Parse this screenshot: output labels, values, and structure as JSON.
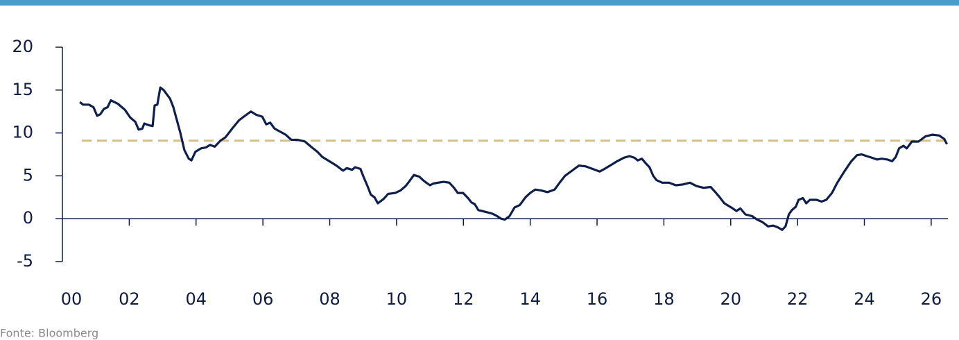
{
  "chart_data": {
    "type": "line",
    "source": "Fonte: Bloomberg",
    "color": "#0f1f4b",
    "x": [
      2000.52,
      2000.62,
      2000.79,
      2000.93,
      2001.04,
      2001.14,
      2001.24,
      2001.35,
      2001.45,
      2001.66,
      2001.87,
      2002.03,
      2002.18,
      2002.28,
      2002.39,
      2002.45,
      2002.59,
      2002.7,
      2002.76,
      2002.84,
      2002.93,
      2003.03,
      2003.22,
      2003.32,
      2003.53,
      2003.65,
      2003.78,
      2003.86,
      2003.98,
      2004.15,
      2004.29,
      2004.42,
      2004.56,
      2004.73,
      2004.88,
      2005.08,
      2005.29,
      2005.5,
      2005.64,
      2005.81,
      2005.98,
      2006.1,
      2006.22,
      2006.35,
      2006.54,
      2006.68,
      2006.85,
      2007.05,
      2007.26,
      2007.47,
      2007.63,
      2007.78,
      2007.99,
      2008.2,
      2008.4,
      2008.51,
      2008.67,
      2008.76,
      2008.92,
      2009.02,
      2009.13,
      2009.23,
      2009.34,
      2009.44,
      2009.61,
      2009.75,
      2009.96,
      2010.12,
      2010.27,
      2010.37,
      2010.52,
      2010.68,
      2010.79,
      2010.89,
      2011.0,
      2011.1,
      2011.24,
      2011.41,
      2011.58,
      2011.72,
      2011.83,
      2011.99,
      2012.14,
      2012.24,
      2012.34,
      2012.45,
      2012.66,
      2012.86,
      2012.97,
      2013.13,
      2013.24,
      2013.38,
      2013.53,
      2013.69,
      2013.86,
      2014.0,
      2014.15,
      2014.32,
      2014.52,
      2014.73,
      2014.9,
      2015.04,
      2015.25,
      2015.46,
      2015.66,
      2015.87,
      2016.08,
      2016.22,
      2016.39,
      2016.6,
      2016.8,
      2016.97,
      2017.12,
      2017.22,
      2017.34,
      2017.47,
      2017.57,
      2017.68,
      2017.78,
      2017.95,
      2018.15,
      2018.36,
      2018.57,
      2018.78,
      2018.98,
      2019.19,
      2019.4,
      2019.54,
      2019.67,
      2019.81,
      2020.02,
      2020.17,
      2020.29,
      2020.44,
      2020.64,
      2020.79,
      2020.95,
      2021.12,
      2021.27,
      2021.41,
      2021.54,
      2021.64,
      2021.74,
      2021.83,
      2021.95,
      2022.03,
      2022.16,
      2022.26,
      2022.37,
      2022.57,
      2022.72,
      2022.86,
      2023.03,
      2023.19,
      2023.4,
      2023.61,
      2023.78,
      2023.92,
      2024.07,
      2024.23,
      2024.38,
      2024.52,
      2024.69,
      2024.83,
      2024.94,
      2025.04,
      2025.17,
      2025.27,
      2025.42,
      2025.62,
      2025.83,
      2026.04,
      2026.24,
      2026.39,
      2026.47
    ],
    "values": [
      13.6,
      13.3,
      13.3,
      13.0,
      12.0,
      12.2,
      12.8,
      13.0,
      13.8,
      13.4,
      12.7,
      11.8,
      11.3,
      10.4,
      10.5,
      11.1,
      10.9,
      10.8,
      13.2,
      13.3,
      15.3,
      15.0,
      14.0,
      13.0,
      10.0,
      8.0,
      7.0,
      6.8,
      7.8,
      8.2,
      8.3,
      8.6,
      8.4,
      9.1,
      9.5,
      10.5,
      11.5,
      12.1,
      12.5,
      12.1,
      11.9,
      11.0,
      11.2,
      10.5,
      10.1,
      9.8,
      9.2,
      9.2,
      9.0,
      8.3,
      7.8,
      7.2,
      6.7,
      6.2,
      5.6,
      5.9,
      5.7,
      6.0,
      5.8,
      4.8,
      3.8,
      2.8,
      2.5,
      1.8,
      2.3,
      2.9,
      3.0,
      3.3,
      3.8,
      4.3,
      5.1,
      4.9,
      4.5,
      4.2,
      3.9,
      4.1,
      4.2,
      4.3,
      4.2,
      3.6,
      3.0,
      3.0,
      2.4,
      1.9,
      1.7,
      1.0,
      0.8,
      0.6,
      0.4,
      0.0,
      -0.1,
      0.3,
      1.3,
      1.6,
      2.5,
      3.0,
      3.4,
      3.3,
      3.1,
      3.4,
      4.3,
      5.0,
      5.6,
      6.2,
      6.1,
      5.8,
      5.5,
      5.8,
      6.2,
      6.7,
      7.1,
      7.3,
      7.1,
      6.8,
      7.0,
      6.4,
      6.0,
      5.0,
      4.5,
      4.2,
      4.2,
      3.9,
      4.0,
      4.2,
      3.8,
      3.6,
      3.7,
      3.1,
      2.5,
      1.8,
      1.3,
      0.9,
      1.2,
      0.5,
      0.3,
      -0.1,
      -0.4,
      -0.9,
      -0.8,
      -1.0,
      -1.3,
      -0.9,
      0.5,
      1.0,
      1.4,
      2.2,
      2.4,
      1.8,
      2.2,
      2.2,
      2.0,
      2.2,
      3.0,
      4.2,
      5.5,
      6.7,
      7.4,
      7.5,
      7.3,
      7.1,
      6.9,
      7.0,
      6.9,
      6.7,
      7.2,
      8.2,
      8.5,
      8.2,
      9.0,
      9.0,
      9.6,
      9.8,
      9.7,
      9.3,
      8.7
    ],
    "reference_line": {
      "value": 9.1,
      "color": "#d4bf8a"
    },
    "xlim": [
      2000,
      2026.5
    ],
    "xticks": [
      {
        "value": 2000,
        "label": "00"
      },
      {
        "value": 2002,
        "label": "02"
      },
      {
        "value": 2004,
        "label": "04"
      },
      {
        "value": 2006,
        "label": "06"
      },
      {
        "value": 2008,
        "label": "08"
      },
      {
        "value": 2010,
        "label": "10"
      },
      {
        "value": 2012,
        "label": "12"
      },
      {
        "value": 2014,
        "label": "14"
      },
      {
        "value": 2016,
        "label": "16"
      },
      {
        "value": 2018,
        "label": "18"
      },
      {
        "value": 2020,
        "label": "20"
      },
      {
        "value": 2022,
        "label": "22"
      },
      {
        "value": 2024,
        "label": "24"
      },
      {
        "value": 2026,
        "label": "26"
      }
    ],
    "ylim": [
      -5,
      20
    ],
    "yticks": [
      -5,
      0,
      5,
      10,
      15,
      20
    ],
    "grid": false
  }
}
